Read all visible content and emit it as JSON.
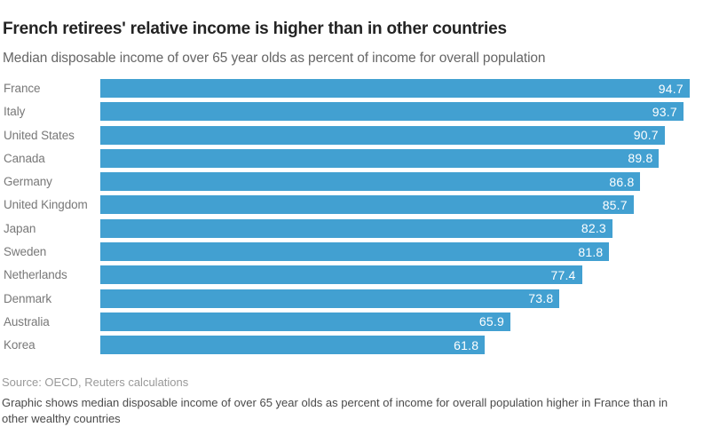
{
  "header": {
    "title": "French retirees' relative income is higher than in other countries",
    "subtitle": "Median disposable income of over 65 year olds as percent of income for overall population"
  },
  "chart_data": {
    "type": "bar",
    "orientation": "horizontal",
    "title": "French retirees' relative income is higher than in other countries",
    "subtitle": "Median disposable income of over 65 year olds as percent of income for overall population",
    "categories": [
      "France",
      "Italy",
      "United States",
      "Canada",
      "Germany",
      "United Kingdom",
      "Japan",
      "Sweden",
      "Netherlands",
      "Denmark",
      "Australia",
      "Korea"
    ],
    "values": [
      94.7,
      93.7,
      90.7,
      89.8,
      86.8,
      85.7,
      82.3,
      81.8,
      77.4,
      73.8,
      65.9,
      61.8
    ],
    "value_labels": [
      "94.7",
      "93.7",
      "90.7",
      "89.8",
      "86.8",
      "85.7",
      "82.3",
      "81.8",
      "77.4",
      "73.8",
      "65.9",
      "61.8"
    ],
    "xlabel": "",
    "ylabel": "",
    "xlim": [
      0,
      100
    ],
    "grid": false,
    "legend": false,
    "bar_color": "#42a0d1",
    "value_label_color": "#ffffff",
    "value_label_position": "inside-end"
  },
  "footer": {
    "source": "Source: OECD, Reuters calculations",
    "caption": "Graphic shows median disposable income of over 65 year olds as percent of income for overall population higher in France than in other wealthy countries"
  }
}
